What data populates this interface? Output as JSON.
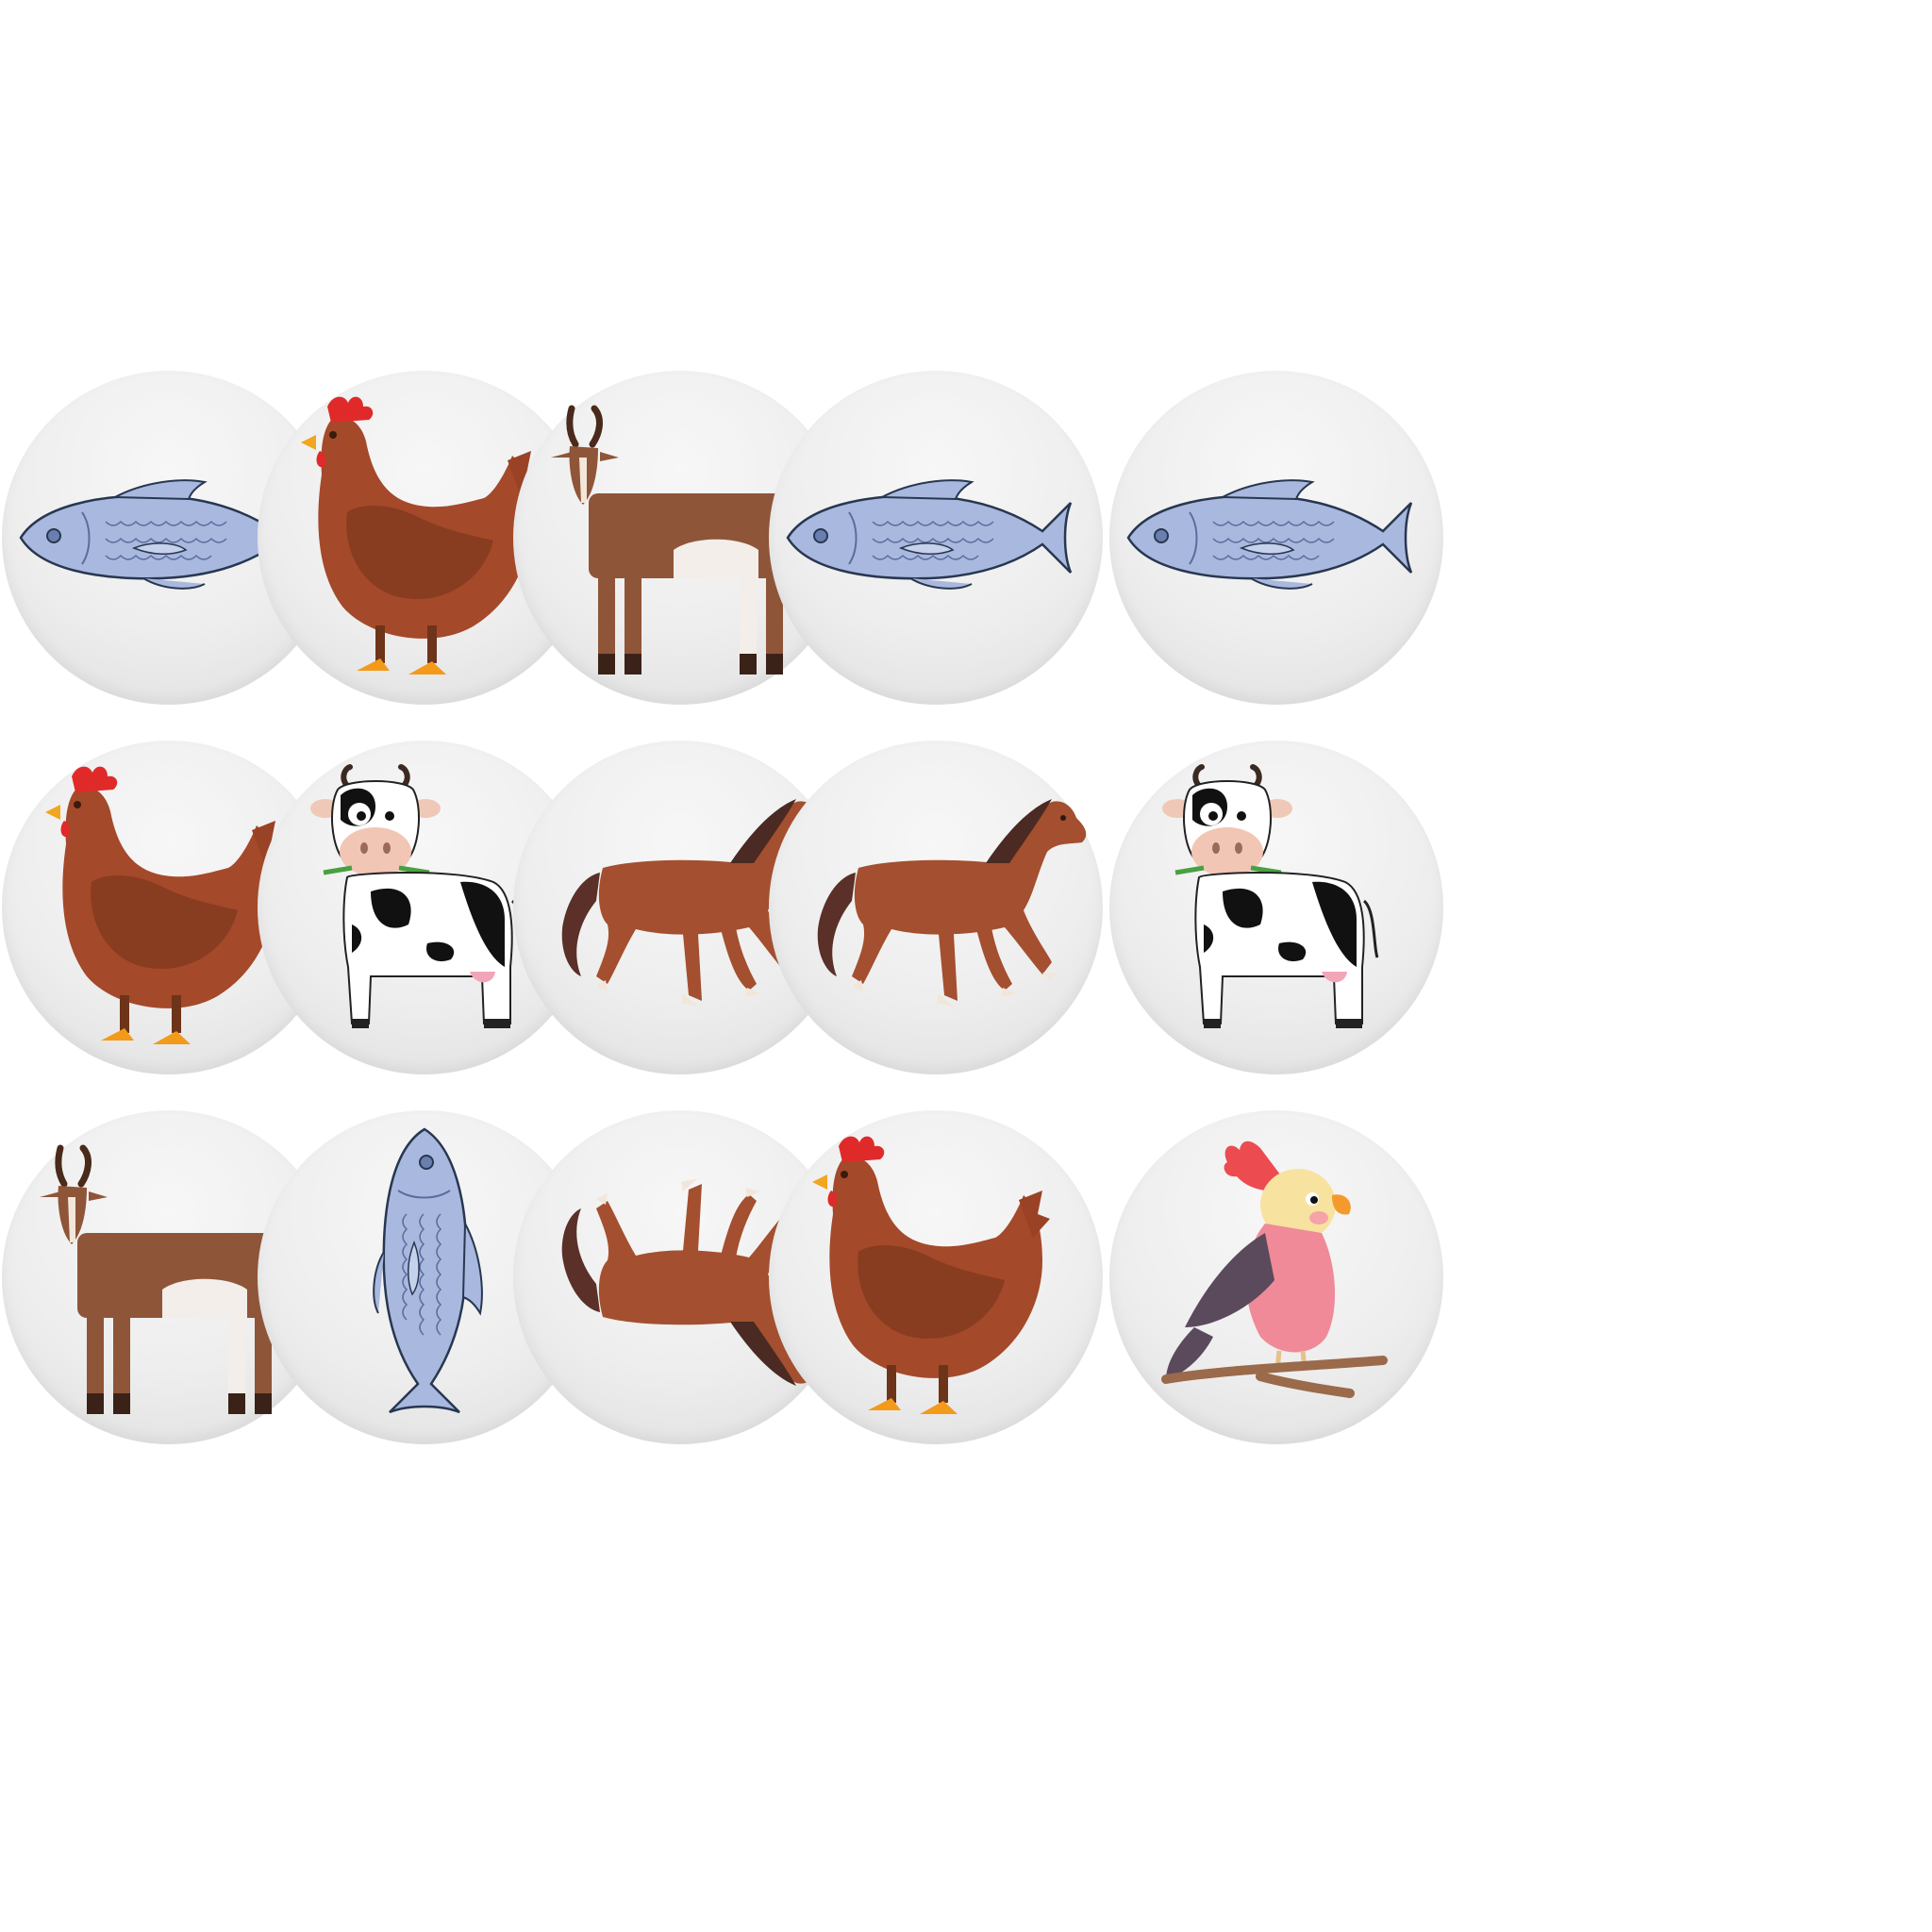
{
  "board": {
    "rows": [
      [
        "fish",
        "chicken",
        "goat",
        "fish"
      ],
      [
        "chicken",
        "cow",
        "horse",
        "horse"
      ],
      [
        "goat",
        "fish-vertical",
        "horse-flipped",
        "chicken"
      ]
    ],
    "targets": [
      "fish",
      "cow",
      "parrot"
    ]
  },
  "icons": {
    "fish": "fish-icon",
    "chicken": "chicken-icon",
    "goat": "goat-icon",
    "cow": "cow-icon",
    "horse": "horse-icon",
    "parrot": "parrot-icon"
  },
  "colors": {
    "token_face": "#eeeeee",
    "fish_body": "#a9b8de",
    "chicken_body": "#a4492a",
    "goat_body": "#8f5538",
    "horse_body": "#a44f2f",
    "parrot_body": "#f08a98"
  }
}
